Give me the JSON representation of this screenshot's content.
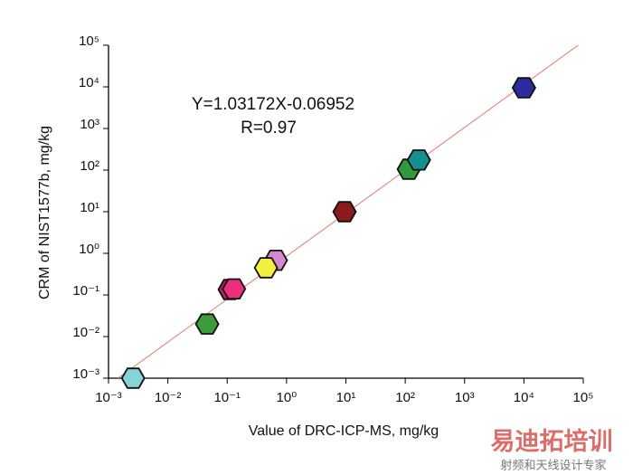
{
  "chart_data": {
    "type": "scatter",
    "x_label": "Value of DRC-ICP-MS, mg/kg",
    "y_label": "CRM of NIST1577b, mg/kg",
    "annotations": [
      "Y=1.03172X-0.06952",
      "R=0.97"
    ],
    "x": [
      0.0026,
      0.046,
      0.11,
      0.13,
      0.66,
      0.45,
      9.5,
      115,
      170,
      10000
    ],
    "values": [
      0.001,
      0.02,
      0.135,
      0.14,
      0.68,
      0.45,
      10,
      105,
      175,
      9500
    ],
    "colors": [
      "#86d3d9",
      "#3d9c3a",
      "#b81f5e",
      "#ec2f7c",
      "#d389cc",
      "#f2ef3f",
      "#8c1c1c",
      "#2f9a3c",
      "#13908f",
      "#2c2c9c"
    ],
    "fit": {
      "slope": 1.03172,
      "intercept": -0.06952,
      "color": "#e07a6e"
    },
    "log_x": true,
    "log_y": true,
    "xlim": [
      0.001,
      100000
    ],
    "ylim": [
      0.001,
      100000
    ],
    "xticks": [
      {
        "value": 0.001,
        "label": "10⁻³"
      },
      {
        "value": 0.01,
        "label": "10⁻²"
      },
      {
        "value": 0.1,
        "label": "10⁻¹"
      },
      {
        "value": 1,
        "label": "10⁰"
      },
      {
        "value": 10,
        "label": "10¹"
      },
      {
        "value": 100,
        "label": "10²"
      },
      {
        "value": 1000,
        "label": "10³"
      },
      {
        "value": 10000,
        "label": "10⁴"
      },
      {
        "value": 100000,
        "label": "10⁵"
      }
    ],
    "yticks": [
      {
        "value": 0.001,
        "label": "10⁻³"
      },
      {
        "value": 0.01,
        "label": "10⁻²"
      },
      {
        "value": 0.1,
        "label": "10⁻¹"
      },
      {
        "value": 1,
        "label": "10⁰"
      },
      {
        "value": 10,
        "label": "10¹"
      },
      {
        "value": 100,
        "label": "10²"
      },
      {
        "value": 1000,
        "label": "10³"
      },
      {
        "value": 10000,
        "label": "10⁴"
      },
      {
        "value": 100000,
        "label": "10⁵"
      }
    ]
  },
  "watermark": [
    "易迪拓培训",
    "射频和天线设计专家"
  ]
}
